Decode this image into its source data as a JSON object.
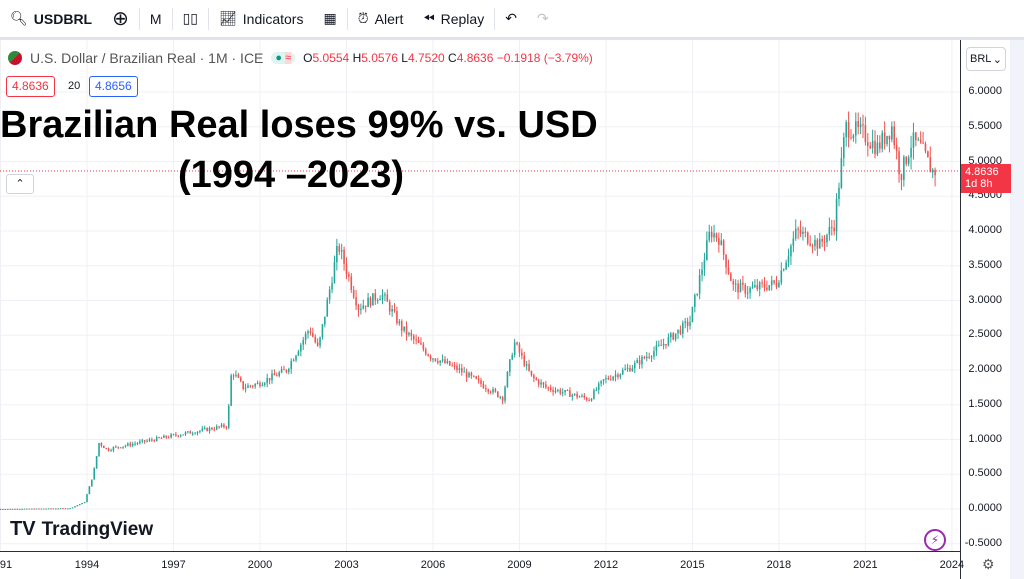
{
  "toolbar": {
    "symbol": "USDBRL",
    "interval": "M",
    "indicators": "Indicators",
    "alert": "Alert",
    "replay": "Replay"
  },
  "legend": {
    "title": "U.S. Dollar / Brazilian Real · 1M · ICE",
    "open": "5.0554",
    "high": "5.0576",
    "low": "4.7520",
    "close": "4.8636",
    "change": "−0.1918 (−3.79%)",
    "bid": "4.8636",
    "spread": "20",
    "ask": "4.8656"
  },
  "headline": {
    "line1": "Brazilian Real loses 99% vs. USD",
    "line2": "(1994 –2023)"
  },
  "axis": {
    "currency": "BRL",
    "last_price": "4.8636",
    "countdown": "1d 8h"
  },
  "logo": "TradingView",
  "colors": {
    "up": "#26a69a",
    "down": "#ef5350"
  },
  "chart_data": {
    "type": "candlestick",
    "title": "U.S. Dollar / Brazilian Real · 1M · ICE",
    "yticks": [
      "6.0000",
      "5.5000",
      "5.0000",
      "4.5000",
      "4.0000",
      "3.5000",
      "3.0000",
      "2.5000",
      "2.0000",
      "1.5000",
      "1.0000",
      "0.5000",
      "0.0000",
      "-0.5000"
    ],
    "xticks": [
      "91",
      "1994",
      "1997",
      "2000",
      "2003",
      "2006",
      "2009",
      "2012",
      "2015",
      "2018",
      "2021",
      "2024"
    ],
    "ylim": [
      -0.6,
      6.6
    ],
    "xlim": [
      1990.9,
      2024.3
    ],
    "path": [
      [
        1991,
        0.0
      ],
      [
        1993.5,
        0.01
      ],
      [
        1994.0,
        0.1
      ],
      [
        1994.3,
        0.5
      ],
      [
        1994.5,
        0.95
      ],
      [
        1994.8,
        0.85
      ],
      [
        1995,
        0.88
      ],
      [
        1997,
        1.05
      ],
      [
        1998.95,
        1.2
      ],
      [
        1999.1,
        2.0
      ],
      [
        1999.5,
        1.75
      ],
      [
        2000,
        1.8
      ],
      [
        2001,
        2.0
      ],
      [
        2001.8,
        2.6
      ],
      [
        2002.1,
        2.3
      ],
      [
        2002.8,
        3.8
      ],
      [
        2003.5,
        2.9
      ],
      [
        2004.3,
        3.1
      ],
      [
        2005,
        2.6
      ],
      [
        2006,
        2.2
      ],
      [
        2007,
        2.0
      ],
      [
        2008.5,
        1.6
      ],
      [
        2008.9,
        2.4
      ],
      [
        2009.5,
        1.9
      ],
      [
        2010,
        1.75
      ],
      [
        2011.5,
        1.58
      ],
      [
        2012,
        1.85
      ],
      [
        2013,
        2.05
      ],
      [
        2014,
        2.35
      ],
      [
        2015,
        2.7
      ],
      [
        2015.7,
        4.0
      ],
      [
        2016,
        3.9
      ],
      [
        2016.5,
        3.2
      ],
      [
        2017,
        3.15
      ],
      [
        2018,
        3.25
      ],
      [
        2018.7,
        4.0
      ],
      [
        2019.5,
        3.8
      ],
      [
        2020,
        4.1
      ],
      [
        2020.4,
        5.5
      ],
      [
        2021,
        5.4
      ],
      [
        2021.5,
        5.2
      ],
      [
        2022,
        5.5
      ],
      [
        2022.3,
        4.8
      ],
      [
        2022.7,
        5.3
      ],
      [
        2023,
        5.2
      ],
      [
        2023.4,
        4.86
      ]
    ]
  }
}
